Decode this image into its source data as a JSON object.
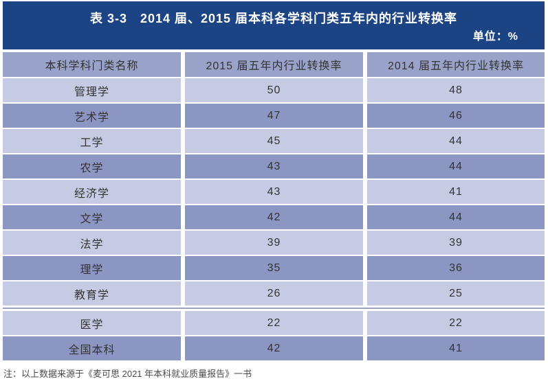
{
  "header": {
    "title": "表 3-3　2014 届、2015 届本科各学科门类五年内的行业转换率",
    "unit_label": "单位：%"
  },
  "table": {
    "columns": [
      "本科学科门类名称",
      "2015 届五年内行业转换率",
      "2014 届五年内行业转换率"
    ],
    "rows": [
      {
        "name": "管理学",
        "y2015": "50",
        "y2014": "48"
      },
      {
        "name": "艺术学",
        "y2015": "47",
        "y2014": "46"
      },
      {
        "name": "工学",
        "y2015": "45",
        "y2014": "44"
      },
      {
        "name": "农学",
        "y2015": "43",
        "y2014": "44"
      },
      {
        "name": "经济学",
        "y2015": "43",
        "y2014": "41"
      },
      {
        "name": "文学",
        "y2015": "42",
        "y2014": "44"
      },
      {
        "name": "法学",
        "y2015": "39",
        "y2014": "39"
      },
      {
        "name": "理学",
        "y2015": "35",
        "y2014": "36"
      },
      {
        "name": "教育学",
        "y2015": "26",
        "y2014": "25"
      },
      {
        "name": "医学",
        "y2015": "22",
        "y2014": "22"
      },
      {
        "name": "全国本科",
        "y2015": "42",
        "y2014": "41"
      }
    ]
  },
  "footer": {
    "note": "注：以上数据来源于《麦可思 2021 年本科就业质量报告》一书"
  },
  "colors": {
    "band_bg": "#1c4383",
    "header_row_bg": "#99a2c9",
    "light_row_bg": "#c6cbe3",
    "dark_row_bg": "#8b96c3",
    "title_text": "#ffffff",
    "cell_text": "#333333",
    "note_text": "#4a4a4a"
  }
}
